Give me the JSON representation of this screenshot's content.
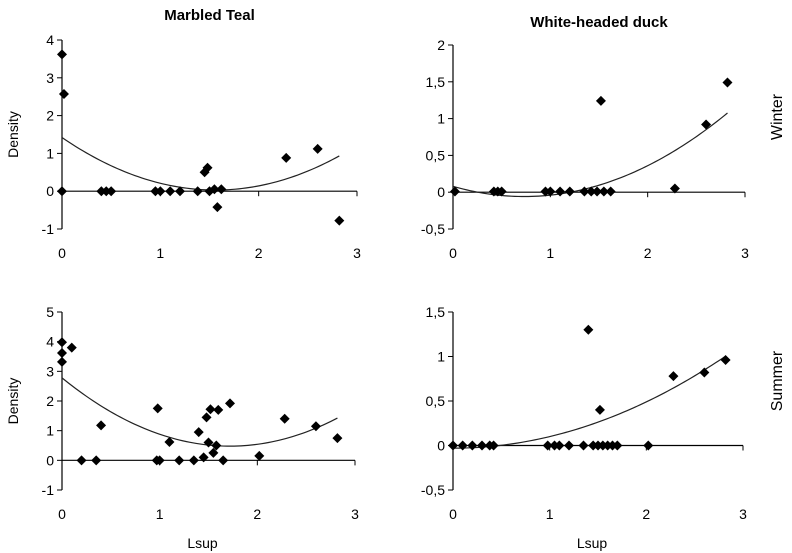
{
  "chart_data": [
    {
      "type": "scatter",
      "title": "Marbled Teal",
      "row_label": "",
      "xlabel": "",
      "ylabel": "Density",
      "xlim": [
        0,
        3
      ],
      "ylim": [
        -1,
        4
      ],
      "xticks": [
        "0",
        "1",
        "2",
        "3"
      ],
      "yticks": [
        "-1",
        "0",
        "1",
        "2",
        "3",
        "4"
      ],
      "points": [
        [
          0,
          3.62
        ],
        [
          0.02,
          2.57
        ],
        [
          0,
          0
        ],
        [
          0.4,
          0
        ],
        [
          0.45,
          0
        ],
        [
          0.5,
          0
        ],
        [
          0.95,
          0
        ],
        [
          1.0,
          0
        ],
        [
          1.1,
          0
        ],
        [
          1.2,
          0
        ],
        [
          1.38,
          0
        ],
        [
          1.45,
          0.5
        ],
        [
          1.48,
          0.62
        ],
        [
          1.5,
          0
        ],
        [
          1.55,
          0.05
        ],
        [
          1.58,
          -0.42
        ],
        [
          1.62,
          0.05
        ],
        [
          2.28,
          0.88
        ],
        [
          2.6,
          1.12
        ],
        [
          2.82,
          -0.78
        ]
      ],
      "trendline": {
        "type": "quadratic",
        "coefficients": [
          1.42,
          -1.78,
          0.57
        ]
      }
    },
    {
      "type": "scatter",
      "title": "White-headed duck",
      "row_label": "Winter",
      "xlabel": "",
      "ylabel": "",
      "xlim": [
        0,
        3
      ],
      "ylim": [
        -0.5,
        2
      ],
      "xticks": [
        "0",
        "1",
        "2",
        "3"
      ],
      "yticks": [
        "-0,5",
        "0",
        "0,5",
        "1",
        "1,5",
        "2"
      ],
      "points": [
        [
          0.02,
          0.01
        ],
        [
          0.42,
          0.01
        ],
        [
          0.46,
          0.01
        ],
        [
          0.5,
          0.01
        ],
        [
          0.95,
          0.01
        ],
        [
          1.0,
          0.01
        ],
        [
          1.1,
          0.01
        ],
        [
          1.2,
          0.01
        ],
        [
          1.35,
          0.01
        ],
        [
          1.42,
          0.01
        ],
        [
          1.48,
          0.01
        ],
        [
          1.52,
          1.24
        ],
        [
          1.55,
          0.01
        ],
        [
          1.62,
          0.01
        ],
        [
          2.28,
          0.05
        ],
        [
          2.6,
          0.92
        ],
        [
          2.82,
          1.49
        ]
      ],
      "trendline": {
        "type": "quadratic",
        "coefficients": [
          0.08,
          -0.38,
          0.26
        ]
      }
    },
    {
      "type": "scatter",
      "title": "",
      "row_label": "",
      "xlabel": "Lsup",
      "ylabel": "Density",
      "xlim": [
        0,
        3
      ],
      "ylim": [
        -1,
        5
      ],
      "xticks": [
        "0",
        "1",
        "2",
        "3"
      ],
      "yticks": [
        "-1",
        "0",
        "1",
        "2",
        "3",
        "4",
        "5"
      ],
      "points": [
        [
          0,
          3.98
        ],
        [
          0,
          3.62
        ],
        [
          0,
          3.32
        ],
        [
          0.1,
          3.8
        ],
        [
          0.2,
          0
        ],
        [
          0.35,
          0
        ],
        [
          0.4,
          1.18
        ],
        [
          0.97,
          0
        ],
        [
          1.0,
          0
        ],
        [
          0.98,
          1.75
        ],
        [
          1.1,
          0.62
        ],
        [
          1.2,
          0
        ],
        [
          1.35,
          0
        ],
        [
          1.4,
          0.95
        ],
        [
          1.45,
          0.1
        ],
        [
          1.48,
          1.45
        ],
        [
          1.5,
          0.6
        ],
        [
          1.52,
          1.72
        ],
        [
          1.55,
          0.25
        ],
        [
          1.58,
          0.5
        ],
        [
          1.6,
          1.7
        ],
        [
          1.65,
          0
        ],
        [
          1.72,
          1.92
        ],
        [
          2.02,
          0.15
        ],
        [
          2.28,
          1.4
        ],
        [
          2.6,
          1.15
        ],
        [
          2.82,
          0.75
        ]
      ],
      "trendline": {
        "type": "quadratic",
        "coefficients": [
          2.78,
          -2.68,
          0.78
        ]
      }
    },
    {
      "type": "scatter",
      "title": "",
      "row_label": "Summer",
      "xlabel": "Lsup",
      "ylabel": "",
      "xlim": [
        0,
        3
      ],
      "ylim": [
        -0.5,
        1.5
      ],
      "xticks": [
        "0",
        "1",
        "2",
        "3"
      ],
      "yticks": [
        "-0,5",
        "0",
        "0,5",
        "1",
        "1,5"
      ],
      "points": [
        [
          0,
          0
        ],
        [
          0.1,
          0
        ],
        [
          0.2,
          0
        ],
        [
          0.3,
          0
        ],
        [
          0.38,
          0
        ],
        [
          0.42,
          0
        ],
        [
          0.98,
          0
        ],
        [
          1.05,
          0
        ],
        [
          1.1,
          0
        ],
        [
          1.2,
          0
        ],
        [
          1.35,
          0
        ],
        [
          1.4,
          1.3
        ],
        [
          1.45,
          0
        ],
        [
          1.5,
          0
        ],
        [
          1.52,
          0.4
        ],
        [
          1.55,
          0
        ],
        [
          1.6,
          0
        ],
        [
          1.65,
          0
        ],
        [
          1.7,
          0
        ],
        [
          2.02,
          0
        ],
        [
          2.28,
          0.78
        ],
        [
          2.6,
          0.82
        ],
        [
          2.82,
          0.96
        ]
      ],
      "trendline": {
        "type": "quadratic",
        "coefficients": [
          -0.03,
          0.0,
          0.13
        ]
      }
    }
  ]
}
